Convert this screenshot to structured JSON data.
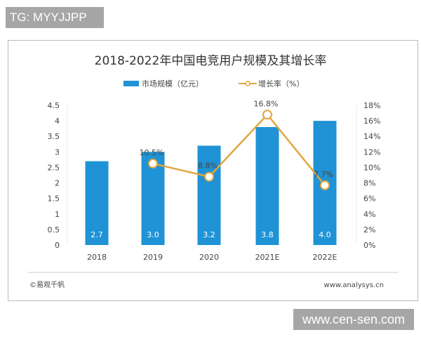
{
  "badges": {
    "top_left": "TG: MYYJJPP",
    "bottom_right": "www.cen-sen.com"
  },
  "footer": {
    "source": "©易观千帆",
    "url": "www.analysys.cn"
  },
  "chart_data": {
    "type": "bar+line",
    "title": "2018-2022年中国电竞用户规模及其增长率",
    "categories": [
      "2018",
      "2019",
      "2020",
      "2021E",
      "2022E"
    ],
    "series": [
      {
        "name": "市场规模（亿元）",
        "type": "bar",
        "axis": "left",
        "values": [
          2.7,
          3.0,
          3.2,
          3.8,
          4.0
        ],
        "labels": [
          "2.7",
          "3.0",
          "3.2",
          "3.8",
          "4.0"
        ],
        "color": "#1f93d5"
      },
      {
        "name": "增长率（%）",
        "type": "line",
        "axis": "right",
        "values": [
          null,
          10.5,
          8.8,
          16.8,
          7.7
        ],
        "labels": [
          "",
          "10.5%",
          "8.8%",
          "16.8%",
          "7.7%"
        ],
        "color": "#e0a640"
      }
    ],
    "y_left": {
      "range": [
        0,
        4.5
      ],
      "ticks": [
        "0",
        "0.5",
        "1",
        "1.5",
        "2",
        "2.5",
        "3",
        "3.5",
        "4",
        "4.5"
      ]
    },
    "y_right": {
      "range": [
        0,
        18
      ],
      "ticks": [
        "0%",
        "2%",
        "4%",
        "6%",
        "8%",
        "10%",
        "12%",
        "14%",
        "16%",
        "18%"
      ]
    },
    "legend": "top-center",
    "grid": false
  }
}
